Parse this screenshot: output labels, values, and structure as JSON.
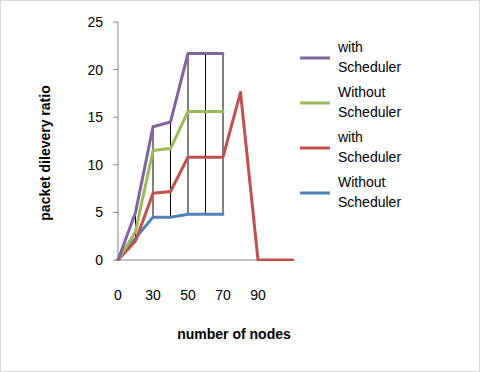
{
  "chart_data": {
    "type": "line",
    "x_label": "number of nodes",
    "y_label": "packet dilevery ratio",
    "categories": [
      "0",
      null,
      "30",
      null,
      "50",
      null,
      "70",
      null,
      "90",
      null,
      null
    ],
    "series": [
      {
        "name": "with Scheduler",
        "color": "#8064a2",
        "values": [
          0,
          5,
          14,
          14.5,
          21.7,
          21.7,
          21.7,
          null,
          null,
          null,
          null
        ]
      },
      {
        "name": "Without Scheduler",
        "color": "#9bbb59",
        "values": [
          0,
          3,
          11.5,
          11.7,
          15.6,
          15.6,
          15.6,
          null,
          null,
          null,
          null
        ]
      },
      {
        "name": "with Scheduler",
        "color": "#c0504d",
        "values": [
          0,
          2,
          7,
          7.2,
          10.8,
          10.8,
          10.8,
          17.6,
          0,
          0,
          0
        ]
      },
      {
        "name": "Without Scheduler",
        "color": "#4f81bd",
        "values": [
          0,
          2.3,
          4.5,
          4.5,
          4.8,
          4.8,
          4.8,
          null,
          null,
          null,
          null
        ]
      }
    ],
    "ylim": [
      0,
      25
    ],
    "yticks": [
      0,
      5,
      10,
      15,
      20,
      25
    ],
    "grid": false,
    "legend": "right"
  }
}
